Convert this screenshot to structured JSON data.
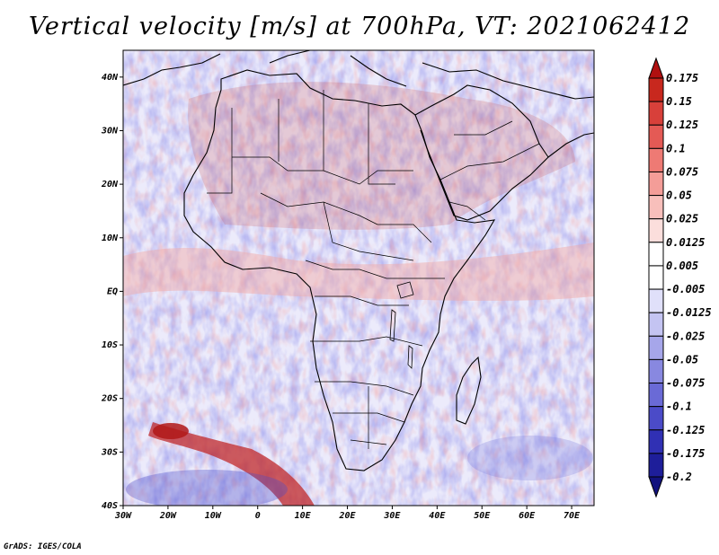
{
  "title": "Vertical velocity [m/s] at 700hPa, VT: 2021062412",
  "credit": "GrADS: IGES/COLA",
  "map": {
    "lat_labels": [
      "40N",
      "30N",
      "20N",
      "10N",
      "EQ",
      "10S",
      "20S",
      "30S",
      "40S"
    ],
    "lon_labels": [
      "30W",
      "20W",
      "10W",
      "0",
      "10E",
      "20E",
      "30E",
      "40E",
      "50E",
      "60E",
      "70E"
    ],
    "lon_range": [
      -30,
      75
    ],
    "lat_range": [
      -40,
      45
    ]
  },
  "colorbar": {
    "levels": [
      "0.175",
      "0.15",
      "0.125",
      "0.1",
      "0.075",
      "0.05",
      "0.025",
      "0.0125",
      "0.005",
      "-0.005",
      "-0.0125",
      "-0.025",
      "-0.05",
      "-0.075",
      "-0.1",
      "-0.125",
      "-0.175",
      "-0.2"
    ],
    "colors": [
      "#b01010",
      "#c8281e",
      "#d8403a",
      "#e45a55",
      "#ee7a74",
      "#f49d98",
      "#f8bfbb",
      "#fbdedc",
      "#ffffff",
      "#ffffff",
      "#e0e0fa",
      "#c4c4f2",
      "#a6a6ea",
      "#8888e0",
      "#6a6ad6",
      "#4b4bc8",
      "#3030b4",
      "#1e1e9a",
      "#12127e"
    ]
  },
  "colors": {
    "frame": "#000000",
    "background": "#ffffff"
  }
}
